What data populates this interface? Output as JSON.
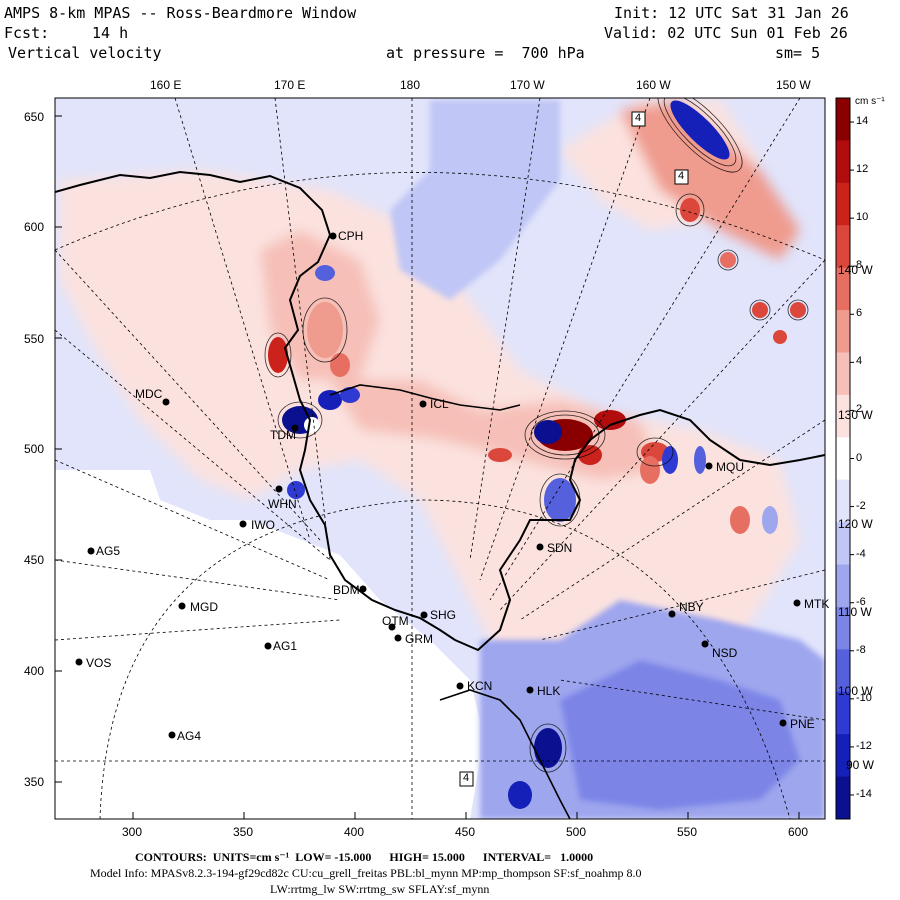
{
  "header": {
    "title": "AMPS 8-km MPAS -- Ross-Beardmore Window",
    "init": "Init: 12 UTC Sat 31 Jan 26",
    "fcst_label": "Fcst:",
    "fcst_value": "14 h",
    "valid": "Valid: 02 UTC Sun 01 Feb 26",
    "field": "Vertical velocity",
    "pressure": "at pressure =  700 hPa",
    "smoothing": "sm= 5"
  },
  "axes": {
    "top_ticks": [
      "160 E",
      "170 E",
      "180",
      "170 W",
      "160 W",
      "150 W"
    ],
    "left_ticks": [
      "650",
      "600",
      "550",
      "500",
      "450",
      "400",
      "350"
    ],
    "bottom_ticks": [
      "300",
      "350",
      "400",
      "450",
      "500",
      "550",
      "600"
    ],
    "interior_lon_labels": [
      "140 W",
      "130 W",
      "120 W",
      "110 W",
      "100 W",
      "90 W"
    ]
  },
  "colorbar": {
    "units": "cm s⁻¹",
    "ticks": [
      "14",
      "12",
      "10",
      "8",
      "6",
      "4",
      "2",
      "0",
      "-2",
      "-4",
      "-6",
      "-8",
      "-10",
      "-12",
      "-14"
    ],
    "warm_colors": [
      "#fbe2df",
      "#f6c0b8",
      "#ef9b8e",
      "#e66f62",
      "#dc473c",
      "#cc221c",
      "#b20d0d",
      "#8a0000"
    ],
    "cool_colors": [
      "#e1e4fb",
      "#c0c6f5",
      "#9ea6ee",
      "#7b85e6",
      "#5560dc",
      "#2e3ad1",
      "#1420b8",
      "#0a1090"
    ],
    "zero_color": "#ffffff"
  },
  "stations": [
    "CPH",
    "MDC",
    "TDM",
    "WHN",
    "IWO",
    "AG5",
    "MGD",
    "AG1",
    "VOS",
    "AG4",
    "BDM",
    "OTM",
    "GRM",
    "SHG",
    "KCN",
    "HLK",
    "SDN",
    "NBY",
    "NSD",
    "MTK",
    "MQU",
    "PNE",
    "ICL"
  ],
  "map_labels": [
    "4",
    "4",
    "4"
  ],
  "footer": {
    "contours": "CONTOURS:  UNITS=cm s⁻¹  LOW= -15.000      HIGH= 15.000      INTERVAL=   1.0000",
    "model_info": "Model Info: MPASv8.2.3-194-gf29cd82c CU:cu_grell_freitas PBL:bl_mynn MP:mp_thompson SF:sf_noahmp 8.0",
    "physics": "LW:rrtmg_lw SW:rrtmg_sw SFLAY:sf_mynn"
  }
}
